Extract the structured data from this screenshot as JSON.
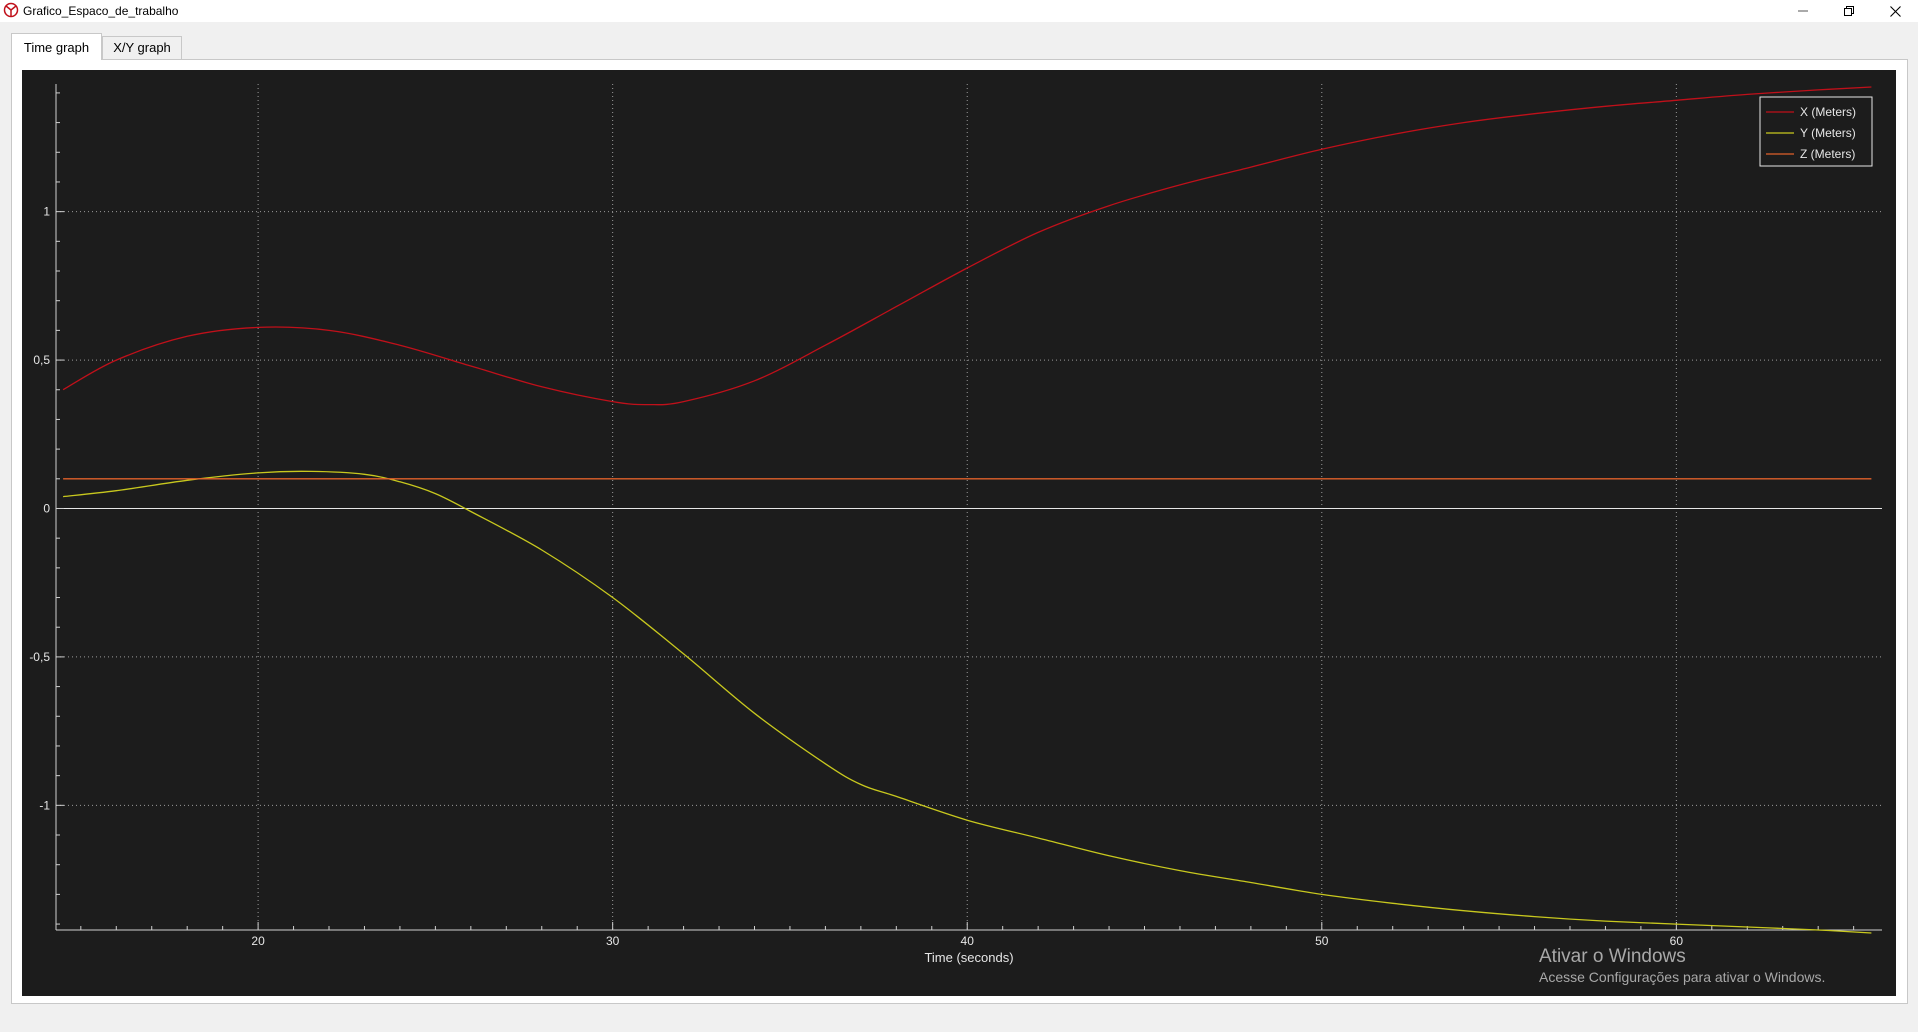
{
  "window": {
    "title": "Grafico_Espaco_de_trabalho",
    "icon": "app-logo-icon"
  },
  "tabs": [
    {
      "label": "Time graph",
      "active": true
    },
    {
      "label": "X/Y graph",
      "active": false
    }
  ],
  "chart_data": {
    "type": "line",
    "xlabel": "Time (seconds)",
    "ylabel": "",
    "xlim": [
      14.3,
      65.8
    ],
    "ylim": [
      -1.42,
      1.43
    ],
    "x_ticks": [
      20,
      30,
      40,
      50,
      60
    ],
    "x_tick_labels": [
      "20",
      "30",
      "40",
      "50",
      "60"
    ],
    "y_ticks": [
      -1,
      -0.5,
      0,
      0.5,
      1
    ],
    "y_tick_labels": [
      "-1",
      "-0,5",
      "0",
      "0,5",
      "1"
    ],
    "grid": true,
    "legend_position": "top-right",
    "series": [
      {
        "name": "X (Meters)",
        "color": "#c0101a",
        "x": [
          14.5,
          16,
          18,
          20,
          22,
          24,
          26,
          28,
          30,
          31,
          32,
          34,
          36,
          38,
          40,
          42,
          44,
          46,
          48,
          50,
          52,
          54,
          56,
          58,
          60,
          62,
          64,
          65.5
        ],
        "y": [
          0.4,
          0.5,
          0.58,
          0.61,
          0.6,
          0.55,
          0.48,
          0.41,
          0.36,
          0.35,
          0.36,
          0.43,
          0.55,
          0.68,
          0.81,
          0.93,
          1.02,
          1.09,
          1.15,
          1.21,
          1.26,
          1.3,
          1.33,
          1.355,
          1.375,
          1.395,
          1.41,
          1.42
        ]
      },
      {
        "name": "Y (Meters)",
        "color": "#c8c81e",
        "x": [
          14.5,
          16,
          18,
          20,
          21.5,
          23,
          24,
          25,
          26,
          28,
          30,
          32,
          34,
          36,
          37,
          38,
          40,
          42,
          44,
          46,
          48,
          50,
          52,
          54,
          56,
          58,
          60,
          62,
          64,
          65.5
        ],
        "y": [
          0.04,
          0.06,
          0.095,
          0.12,
          0.125,
          0.115,
          0.09,
          0.05,
          -0.01,
          -0.14,
          -0.3,
          -0.49,
          -0.69,
          -0.86,
          -0.93,
          -0.97,
          -1.05,
          -1.11,
          -1.17,
          -1.22,
          -1.26,
          -1.3,
          -1.33,
          -1.355,
          -1.375,
          -1.39,
          -1.4,
          -1.41,
          -1.42,
          -1.43
        ]
      },
      {
        "name": "Z (Meters)",
        "color": "#e0602a",
        "x": [
          14.5,
          65.5
        ],
        "y": [
          0.1,
          0.1
        ]
      }
    ]
  },
  "watermark": {
    "line1": "Ativar o Windows",
    "line2": "Acesse Configurações para ativar o Windows."
  }
}
